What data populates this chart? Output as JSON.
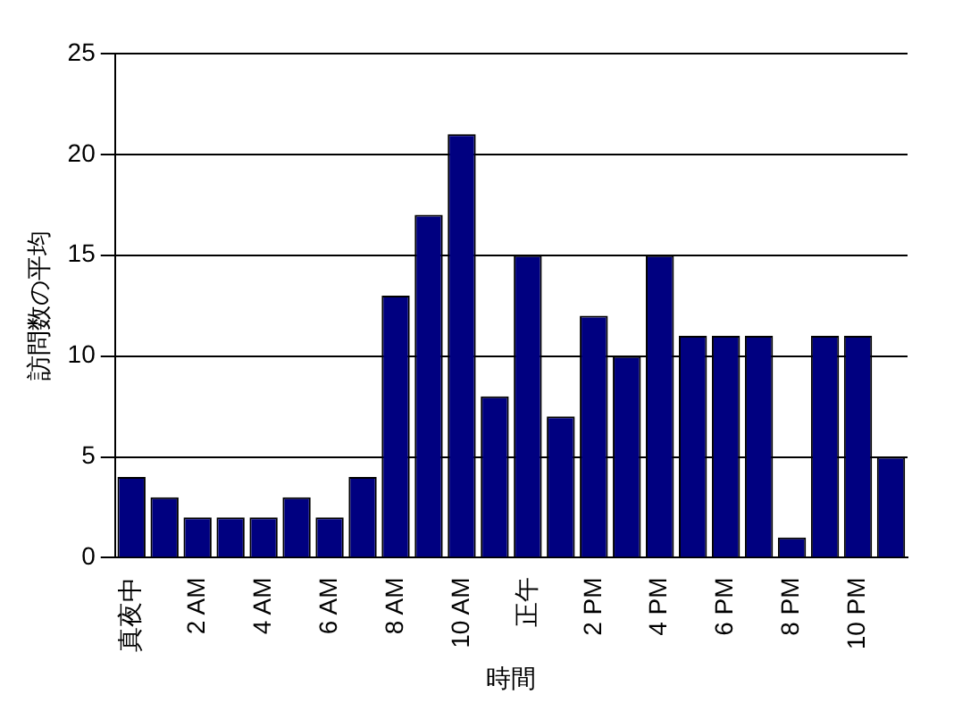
{
  "chart_data": {
    "type": "bar",
    "xlabel": "時間",
    "ylabel": "訪問数の平均",
    "categories": [
      "真夜中",
      null,
      "2 AM",
      null,
      "4 AM",
      null,
      "6 AM",
      null,
      "8 AM",
      null,
      "10 AM",
      null,
      "正午",
      null,
      "2 PM",
      null,
      "4 PM",
      null,
      "6 PM",
      null,
      "8 PM",
      null,
      "10 PM",
      null
    ],
    "values": [
      4,
      3,
      2,
      2,
      2,
      3,
      2,
      4,
      13,
      17,
      21,
      8,
      15,
      7,
      12,
      10,
      15,
      11,
      11,
      11,
      1,
      11,
      11,
      5
    ],
    "color": "#000080",
    "ylim": [
      0,
      25
    ],
    "yticks": [
      0,
      5,
      10,
      15,
      20,
      25
    ],
    "grid": "y",
    "legend": false
  }
}
